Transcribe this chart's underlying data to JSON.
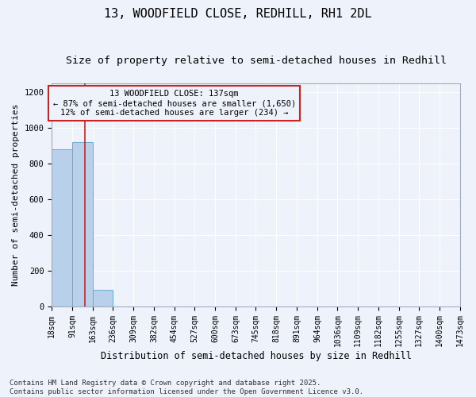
{
  "title": "13, WOODFIELD CLOSE, REDHILL, RH1 2DL",
  "subtitle": "Size of property relative to semi-detached houses in Redhill",
  "xlabel": "Distribution of semi-detached houses by size in Redhill",
  "ylabel": "Number of semi-detached properties",
  "footer_line1": "Contains HM Land Registry data © Crown copyright and database right 2025.",
  "footer_line2": "Contains public sector information licensed under the Open Government Licence v3.0.",
  "bin_edges": [
    18,
    91,
    163,
    236,
    309,
    382,
    454,
    527,
    600,
    673,
    745,
    818,
    891,
    964,
    1036,
    1109,
    1182,
    1255,
    1327,
    1400,
    1473
  ],
  "bar_heights": [
    880,
    920,
    90,
    0,
    0,
    0,
    0,
    0,
    0,
    0,
    0,
    0,
    0,
    0,
    0,
    0,
    0,
    0,
    0,
    0
  ],
  "bar_color": "#b8d0ea",
  "bar_edge_color": "#6aaad4",
  "vline_x": 137,
  "vline_color": "#cc2222",
  "annotation_title": "13 WOODFIELD CLOSE: 137sqm",
  "annotation_line1": "← 87% of semi-detached houses are smaller (1,650)",
  "annotation_line2": "12% of semi-detached houses are larger (234) →",
  "annotation_box_color": "#cc2222",
  "ylim": [
    0,
    1250
  ],
  "yticks": [
    0,
    200,
    400,
    600,
    800,
    1000,
    1200
  ],
  "bg_color": "#eef2fb",
  "grid_color": "#ffffff",
  "title_fontsize": 11,
  "subtitle_fontsize": 9.5,
  "tick_fontsize": 7,
  "xlabel_fontsize": 8.5,
  "ylabel_fontsize": 8,
  "footer_fontsize": 6.5
}
